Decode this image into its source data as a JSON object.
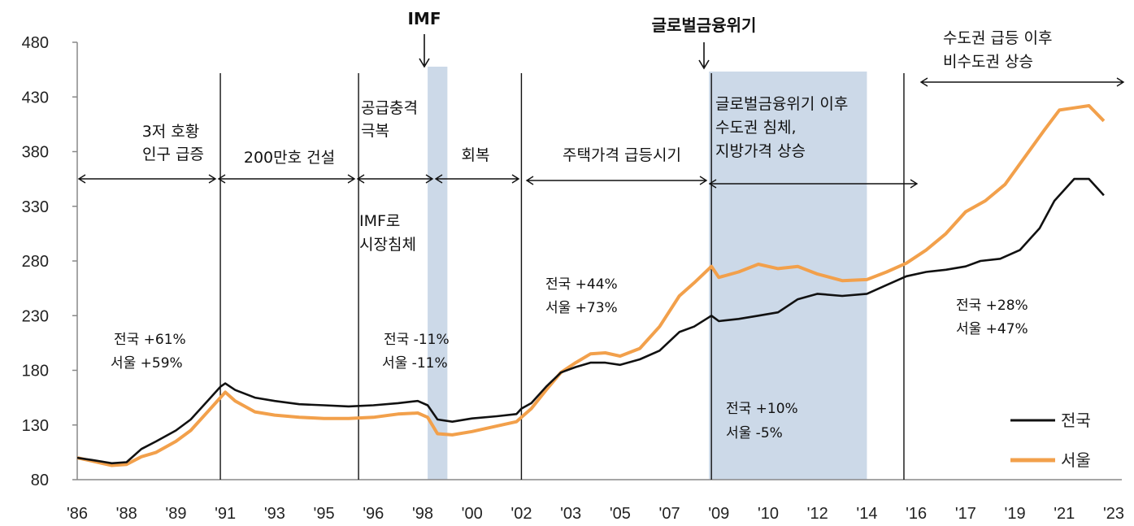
{
  "chart_data": {
    "type": "line",
    "title": "",
    "xlabel": "",
    "ylabel": "",
    "ylim": [
      80,
      480
    ],
    "yticks": [
      80,
      130,
      180,
      230,
      280,
      330,
      380,
      430,
      480
    ],
    "x_tick_labels": [
      "'86",
      "'88",
      "'89",
      "'91",
      "'93",
      "'95",
      "'96",
      "'98",
      "'00",
      "'02",
      "'03",
      "'05",
      "'07",
      "'09",
      "'10",
      "'12",
      "'14",
      "'16",
      "'17",
      "'19",
      "'21",
      "'23"
    ],
    "colors": {
      "national": "#111111",
      "seoul": "#f2a04b",
      "shade": "#ccd9e8",
      "axis": "#888888"
    },
    "legend": {
      "position": "bottom-right",
      "items": [
        "전국",
        "서울"
      ]
    },
    "shaded_periods": [
      {
        "label": "IMF",
        "start": 7.1,
        "end": 7.5
      },
      {
        "label": "글로벌금융위기",
        "start": 12.8,
        "end": 16.0
      }
    ],
    "dividers": [
      2.9,
      5.7,
      9.0,
      12.85,
      16.75
    ],
    "series": [
      {
        "name": "전국",
        "points": [
          [
            0,
            100
          ],
          [
            0.3,
            98
          ],
          [
            0.7,
            95
          ],
          [
            1.0,
            96
          ],
          [
            1.3,
            108
          ],
          [
            1.6,
            115
          ],
          [
            2.0,
            125
          ],
          [
            2.3,
            135
          ],
          [
            2.6,
            150
          ],
          [
            2.9,
            165
          ],
          [
            3.0,
            168
          ],
          [
            3.2,
            162
          ],
          [
            3.6,
            155
          ],
          [
            4.0,
            152
          ],
          [
            4.5,
            149
          ],
          [
            5.0,
            148
          ],
          [
            5.5,
            147
          ],
          [
            6.0,
            148
          ],
          [
            6.5,
            150
          ],
          [
            6.9,
            152
          ],
          [
            7.1,
            148
          ],
          [
            7.3,
            135
          ],
          [
            7.6,
            133
          ],
          [
            8.0,
            136
          ],
          [
            8.5,
            138
          ],
          [
            8.9,
            140
          ],
          [
            9.0,
            145
          ],
          [
            9.2,
            150
          ],
          [
            9.5,
            165
          ],
          [
            9.8,
            178
          ],
          [
            10.1,
            183
          ],
          [
            10.4,
            187
          ],
          [
            10.7,
            187
          ],
          [
            11.0,
            185
          ],
          [
            11.4,
            190
          ],
          [
            11.8,
            198
          ],
          [
            12.2,
            215
          ],
          [
            12.5,
            220
          ],
          [
            12.85,
            230
          ],
          [
            13.0,
            225
          ],
          [
            13.4,
            227
          ],
          [
            13.8,
            230
          ],
          [
            14.2,
            233
          ],
          [
            14.6,
            245
          ],
          [
            15.0,
            250
          ],
          [
            15.5,
            248
          ],
          [
            16.0,
            250
          ],
          [
            16.4,
            258
          ],
          [
            16.8,
            266
          ],
          [
            17.2,
            270
          ],
          [
            17.6,
            272
          ],
          [
            18.0,
            275
          ],
          [
            18.3,
            280
          ],
          [
            18.7,
            282
          ],
          [
            19.1,
            290
          ],
          [
            19.5,
            310
          ],
          [
            19.8,
            335
          ],
          [
            20.2,
            355
          ],
          [
            20.5,
            355
          ],
          [
            20.8,
            340
          ]
        ]
      },
      {
        "name": "서울",
        "points": [
          [
            0,
            100
          ],
          [
            0.3,
            97
          ],
          [
            0.7,
            93
          ],
          [
            1.0,
            94
          ],
          [
            1.3,
            101
          ],
          [
            1.6,
            105
          ],
          [
            2.0,
            115
          ],
          [
            2.3,
            125
          ],
          [
            2.6,
            140
          ],
          [
            2.9,
            155
          ],
          [
            3.0,
            160
          ],
          [
            3.2,
            152
          ],
          [
            3.6,
            142
          ],
          [
            4.0,
            139
          ],
          [
            4.5,
            137
          ],
          [
            5.0,
            136
          ],
          [
            5.5,
            136
          ],
          [
            6.0,
            137
          ],
          [
            6.5,
            140
          ],
          [
            6.9,
            141
          ],
          [
            7.1,
            137
          ],
          [
            7.3,
            122
          ],
          [
            7.6,
            121
          ],
          [
            8.0,
            124
          ],
          [
            8.5,
            129
          ],
          [
            8.9,
            133
          ],
          [
            9.0,
            137
          ],
          [
            9.2,
            145
          ],
          [
            9.5,
            162
          ],
          [
            9.8,
            178
          ],
          [
            10.1,
            187
          ],
          [
            10.4,
            195
          ],
          [
            10.7,
            196
          ],
          [
            11.0,
            193
          ],
          [
            11.4,
            200
          ],
          [
            11.8,
            220
          ],
          [
            12.2,
            248
          ],
          [
            12.5,
            260
          ],
          [
            12.85,
            275
          ],
          [
            13.0,
            265
          ],
          [
            13.4,
            270
          ],
          [
            13.8,
            277
          ],
          [
            14.2,
            273
          ],
          [
            14.6,
            275
          ],
          [
            15.0,
            268
          ],
          [
            15.5,
            262
          ],
          [
            16.0,
            263
          ],
          [
            16.4,
            270
          ],
          [
            16.8,
            278
          ],
          [
            17.2,
            290
          ],
          [
            17.6,
            305
          ],
          [
            18.0,
            325
          ],
          [
            18.4,
            335
          ],
          [
            18.8,
            350
          ],
          [
            19.2,
            375
          ],
          [
            19.6,
            400
          ],
          [
            19.9,
            418
          ],
          [
            20.2,
            420
          ],
          [
            20.5,
            422
          ],
          [
            20.8,
            408
          ]
        ]
      }
    ]
  },
  "annotations": {
    "imf_header": "IMF",
    "gfc_header": "글로벌금융위기",
    "p1_l1": "3저 호황",
    "p1_l2": "인구 급증",
    "p2": "200만호 건설",
    "p3_l1": "공급충격",
    "p3_l2": "극복",
    "p4": "회복",
    "p5": "주택가격 급등시기",
    "p6_l1": "글로벌금융위기 이후",
    "p6_l2": "수도권 침체,",
    "p6_l3": "지방가격 상승",
    "p7_l1": "수도권 급등 이후",
    "p7_l2": "비수도권 상승",
    "imf_note_l1": "IMF로",
    "imf_note_l2": "시장침체",
    "s1_l1": "전국 +61%",
    "s1_l2": "서울 +59%",
    "s2_l1": "전국 -11%",
    "s2_l2": "서울 -11%",
    "s3_l1": "전국 +44%",
    "s3_l2": "서울 +73%",
    "s4_l1": "전국 +10%",
    "s4_l2": "서울 -5%",
    "s5_l1": "전국 +28%",
    "s5_l2": "서울 +47%"
  }
}
